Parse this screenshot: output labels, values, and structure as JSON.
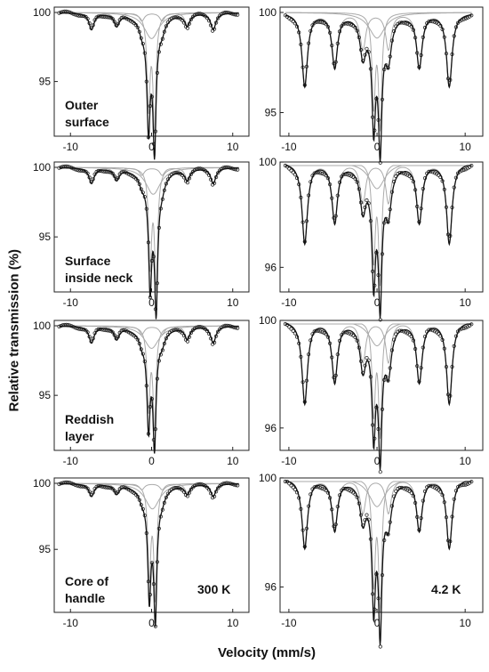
{
  "chart_data": {
    "type": "line",
    "ylabel": "Relative transmission (%)",
    "xlabel": "Velocity (mm/s)",
    "panels": [
      {
        "row": 0,
        "col": 0,
        "label_lines": [
          "Outer",
          "surface"
        ],
        "temperature_label": "",
        "xlim": [
          -12,
          12
        ],
        "xticks": [
          -10,
          0,
          10
        ],
        "ylim": [
          91.3,
          100.5
        ],
        "yticks": [
          95,
          100
        ],
        "sextet_lines": [
          -7.4,
          -4.3,
          -1.2,
          1.3,
          4.4,
          7.6
        ],
        "sextet_depth": 1.4,
        "doublet_center": 0.0,
        "doublet_depth": 8.6
      },
      {
        "row": 0,
        "col": 1,
        "label_lines": [],
        "temperature_label": "",
        "xlim": [
          -11,
          12
        ],
        "xticks": [
          -10,
          0,
          10
        ],
        "ylim": [
          94.0,
          100.5
        ],
        "yticks": [
          95,
          100
        ],
        "sextet_lines": [
          -8.2,
          -4.8,
          -1.6,
          1.3,
          4.8,
          8.2
        ],
        "sextet_depth": 4.3,
        "doublet_center": 0.0,
        "doublet_depth": 5.8
      },
      {
        "row": 1,
        "col": 0,
        "label_lines": [
          "Surface",
          "inside neck"
        ],
        "temperature_label": "",
        "xlim": [
          -12,
          12
        ],
        "xticks": [
          -10,
          0,
          10
        ],
        "ylim": [
          91.3,
          100.5
        ],
        "yticks": [
          95,
          100
        ],
        "sextet_lines": [
          -7.4,
          -4.3,
          -1.2,
          1.3,
          4.4,
          7.6
        ],
        "sextet_depth": 1.3,
        "doublet_center": 0.2,
        "doublet_depth": 8.8
      },
      {
        "row": 1,
        "col": 1,
        "label_lines": [],
        "temperature_label": "",
        "xlim": [
          -11,
          12
        ],
        "xticks": [
          -10,
          0,
          10
        ],
        "ylim": [
          95.2,
          100.3
        ],
        "yticks": [
          96,
          100
        ],
        "sextet_lines": [
          -8.2,
          -4.8,
          -1.6,
          1.3,
          4.8,
          8.2
        ],
        "sextet_depth": 3.6,
        "doublet_center": 0.0,
        "doublet_depth": 4.6
      },
      {
        "row": 2,
        "col": 0,
        "label_lines": [
          "Reddish",
          "layer"
        ],
        "temperature_label": "",
        "xlim": [
          -12,
          12
        ],
        "xticks": [
          -10,
          0,
          10
        ],
        "ylim": [
          91.3,
          100.5
        ],
        "yticks": [
          95,
          100
        ],
        "sextet_lines": [
          -7.4,
          -4.3,
          -1.2,
          1.3,
          4.4,
          7.6
        ],
        "sextet_depth": 1.4,
        "doublet_center": 0.0,
        "doublet_depth": 7.4
      },
      {
        "row": 2,
        "col": 1,
        "label_lines": [],
        "temperature_label": "",
        "xlim": [
          -11,
          12
        ],
        "xticks": [
          -10,
          0,
          10
        ],
        "ylim": [
          95.3,
          100.3
        ],
        "yticks": [
          96,
          100
        ],
        "sextet_lines": [
          -8.2,
          -4.8,
          -1.6,
          1.3,
          4.8,
          8.2
        ],
        "sextet_depth": 3.6,
        "doublet_center": 0.0,
        "doublet_depth": 4.3
      },
      {
        "row": 3,
        "col": 0,
        "label_lines": [
          "Core of",
          "handle"
        ],
        "temperature_label": "300 K",
        "xlim": [
          -12,
          12
        ],
        "xticks": [
          -10,
          0,
          10
        ],
        "ylim": [
          90.5,
          100.5
        ],
        "yticks": [
          95,
          100
        ],
        "sextet_lines": [
          -7.4,
          -4.3,
          -1.2,
          1.3,
          4.4,
          7.6
        ],
        "sextet_depth": 1.1,
        "doublet_center": 0.1,
        "doublet_depth": 8.8
      },
      {
        "row": 3,
        "col": 1,
        "label_lines": [],
        "temperature_label": "4.2 K",
        "xlim": [
          -11,
          12
        ],
        "xticks": [
          -10,
          0,
          10
        ],
        "ylim": [
          95.2,
          100.3
        ],
        "yticks": [
          96,
          100
        ],
        "sextet_lines": [
          -8.2,
          -4.8,
          -1.6,
          1.3,
          4.8,
          8.2
        ],
        "sextet_depth": 3.0,
        "doublet_center": 0.0,
        "doublet_depth": 4.8
      }
    ]
  }
}
